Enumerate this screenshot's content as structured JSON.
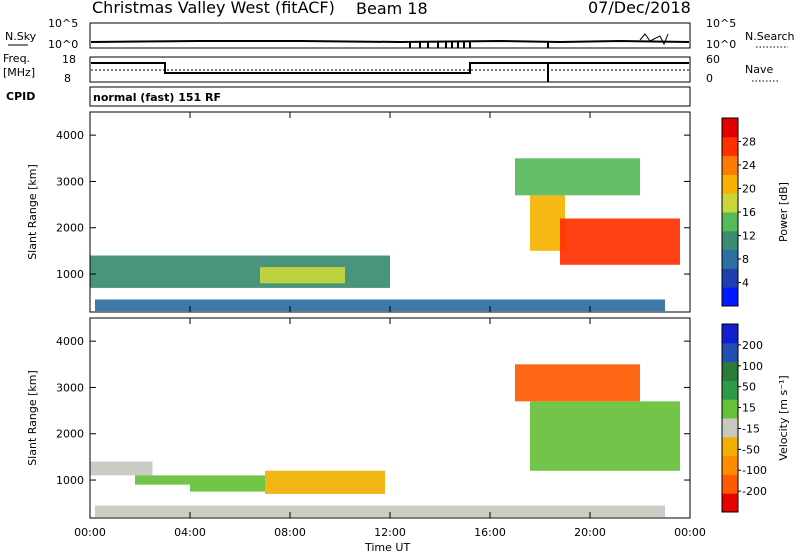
{
  "header": {
    "station_title": "Christmas Valley West (fitACF)",
    "beam": "Beam 18",
    "date": "07/Dec/2018"
  },
  "parameters": {
    "nsky_label": "N.Sky",
    "nsky_ticks": [
      "10^5",
      "10^0"
    ],
    "nsearch_label": "N.Search",
    "nsearch_ticks": [
      "10^5",
      "10^0"
    ],
    "freq_label_line1": "Freq.",
    "freq_label_line2": "[MHz]",
    "freq_ticks": [
      "18",
      "8"
    ],
    "nave_label": "Nave",
    "nave_ticks": [
      "60",
      "0"
    ],
    "cpid_label": "CPID",
    "cpid_value": "normal (fast) 151 RF"
  },
  "x_axis": {
    "label": "Time UT",
    "ticks": [
      "00:00",
      "04:00",
      "08:00",
      "12:00",
      "16:00",
      "20:00",
      "00:00"
    ]
  },
  "colors": {
    "power_scale": [
      "#0018ff",
      "#1f3fb0",
      "#2f6ea0",
      "#3a8b72",
      "#56b95a",
      "#c9d63a",
      "#f5b300",
      "#ff7a00",
      "#ff3000",
      "#e00000"
    ],
    "velocity_scale": [
      "#e60000",
      "#ff5a00",
      "#ff8c00",
      "#f0b000",
      "#c8c8c0",
      "#66c03a",
      "#2f9a46",
      "#2a7a3a",
      "#2050b0",
      "#1020d0"
    ]
  },
  "chart_data": [
    {
      "type": "heatmap",
      "title": "",
      "ylabel": "Slant Range [km]",
      "xlabel": "",
      "x_range_hours": [
        0,
        24
      ],
      "ylim": [
        180,
        4500
      ],
      "y_ticks": [
        "1000",
        "2000",
        "3000",
        "4000"
      ],
      "colorbar": {
        "label": "Power [dB]",
        "range": [
          0,
          32
        ],
        "ticks": [
          "4",
          "8",
          "12",
          "16",
          "20",
          "24",
          "28"
        ]
      },
      "regions": [
        {
          "start_hour": 0.0,
          "end_hour": 12.0,
          "range_min_km": 700,
          "range_max_km": 1400,
          "value_db": 10
        },
        {
          "start_hour": 6.8,
          "end_hour": 10.2,
          "range_min_km": 800,
          "range_max_km": 1150,
          "value_db": 19
        },
        {
          "start_hour": 0.2,
          "end_hour": 23.0,
          "range_min_km": 200,
          "range_max_km": 450,
          "value_db": 8
        },
        {
          "start_hour": 17.6,
          "end_hour": 19.0,
          "range_min_km": 1500,
          "range_max_km": 2700,
          "value_db": 21
        },
        {
          "start_hour": 18.8,
          "end_hour": 23.6,
          "range_min_km": 1200,
          "range_max_km": 2200,
          "value_db": 27
        },
        {
          "start_hour": 17.0,
          "end_hour": 22.0,
          "range_min_km": 2700,
          "range_max_km": 3500,
          "value_db": 14
        }
      ]
    },
    {
      "type": "heatmap",
      "title": "",
      "ylabel": "Slant Range [km]",
      "xlabel": "Time UT",
      "x_range_hours": [
        0,
        24
      ],
      "ylim": [
        180,
        4500
      ],
      "y_ticks": [
        "1000",
        "2000",
        "3000",
        "4000"
      ],
      "colorbar": {
        "label": "Velocity [m s⁻¹]",
        "range": [
          -250,
          250
        ],
        "ticks": [
          "200",
          "100",
          "50",
          "15",
          "-15",
          "-50",
          "-100",
          "-200"
        ]
      },
      "regions": [
        {
          "start_hour": 0.0,
          "end_hour": 2.5,
          "range_min_km": 1100,
          "range_max_km": 1400,
          "value_ms": -20
        },
        {
          "start_hour": 1.8,
          "end_hour": 4.0,
          "range_min_km": 900,
          "range_max_km": 1100,
          "value_ms": 40
        },
        {
          "start_hour": 4.0,
          "end_hour": 7.0,
          "range_min_km": 750,
          "range_max_km": 1100,
          "value_ms": 0
        },
        {
          "start_hour": 7.0,
          "end_hour": 11.8,
          "range_min_km": 700,
          "range_max_km": 1200,
          "value_ms": -60
        },
        {
          "start_hour": 0.2,
          "end_hour": 23.0,
          "range_min_km": 200,
          "range_max_km": 450,
          "value_ms": -20
        },
        {
          "start_hour": 17.6,
          "end_hour": 23.6,
          "range_min_km": 1200,
          "range_max_km": 2700,
          "value_ms": 0
        },
        {
          "start_hour": 17.0,
          "end_hour": 22.0,
          "range_min_km": 2700,
          "range_max_km": 3500,
          "value_ms": -180
        }
      ]
    }
  ]
}
